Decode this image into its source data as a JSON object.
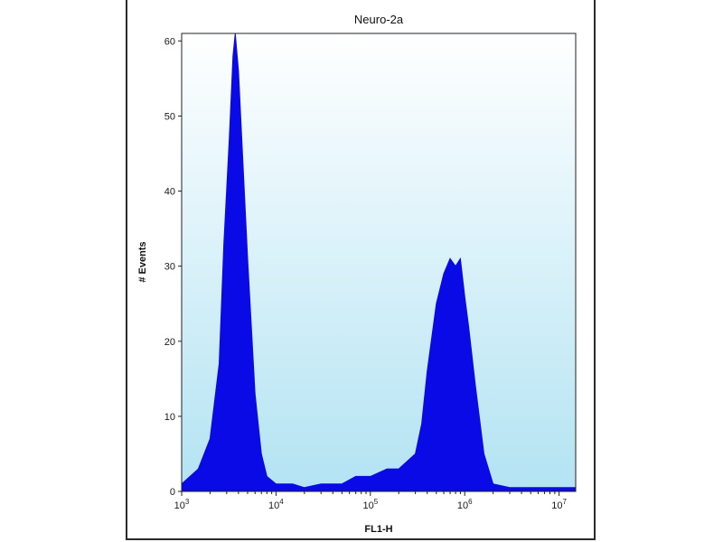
{
  "chart_data": {
    "type": "area",
    "title": "Neuro-2a",
    "xlabel": "FL1-H",
    "ylabel": "# Events",
    "x_scale": "log",
    "xlim": [
      1000,
      15000000
    ],
    "ylim": [
      0,
      61
    ],
    "y_ticks": [
      0,
      10,
      20,
      30,
      40,
      50,
      60
    ],
    "x_ticks": [
      {
        "value": 1000,
        "base": "10",
        "exp": "3"
      },
      {
        "value": 10000,
        "base": "10",
        "exp": "4"
      },
      {
        "value": 100000,
        "base": "10",
        "exp": "5"
      },
      {
        "value": 1000000,
        "base": "10",
        "exp": "6"
      },
      {
        "value": 10000000,
        "base": "10",
        "exp": "7"
      }
    ],
    "grid": false,
    "legend": "none",
    "colors": {
      "fill": "#0a0ae6",
      "background_top": "#ffffff",
      "background_bottom": "#b3e3f3",
      "axis": "#222222"
    },
    "series": [
      {
        "x": [
          1000,
          1500,
          2000,
          2500,
          2800,
          3200,
          3500,
          3700,
          4000,
          4300,
          5000,
          6000,
          7000,
          8000,
          10000,
          15000,
          20000,
          30000,
          50000,
          70000,
          100000,
          150000,
          200000,
          300000,
          350000,
          400000,
          500000,
          600000,
          700000,
          800000,
          900000,
          1000000,
          1100000,
          1300000,
          1600000,
          2000000,
          3000000,
          5000000,
          10000000,
          15000000
        ],
        "values": [
          1,
          3,
          7,
          17,
          33,
          47,
          58,
          61,
          56,
          48,
          31,
          13,
          5,
          2,
          1,
          1,
          0.5,
          1,
          1,
          2,
          2,
          3,
          3,
          5,
          9,
          16,
          25,
          29,
          31,
          30,
          31,
          26,
          22,
          14,
          5,
          1,
          0.5,
          0.5,
          0.5,
          0.5
        ]
      }
    ]
  }
}
